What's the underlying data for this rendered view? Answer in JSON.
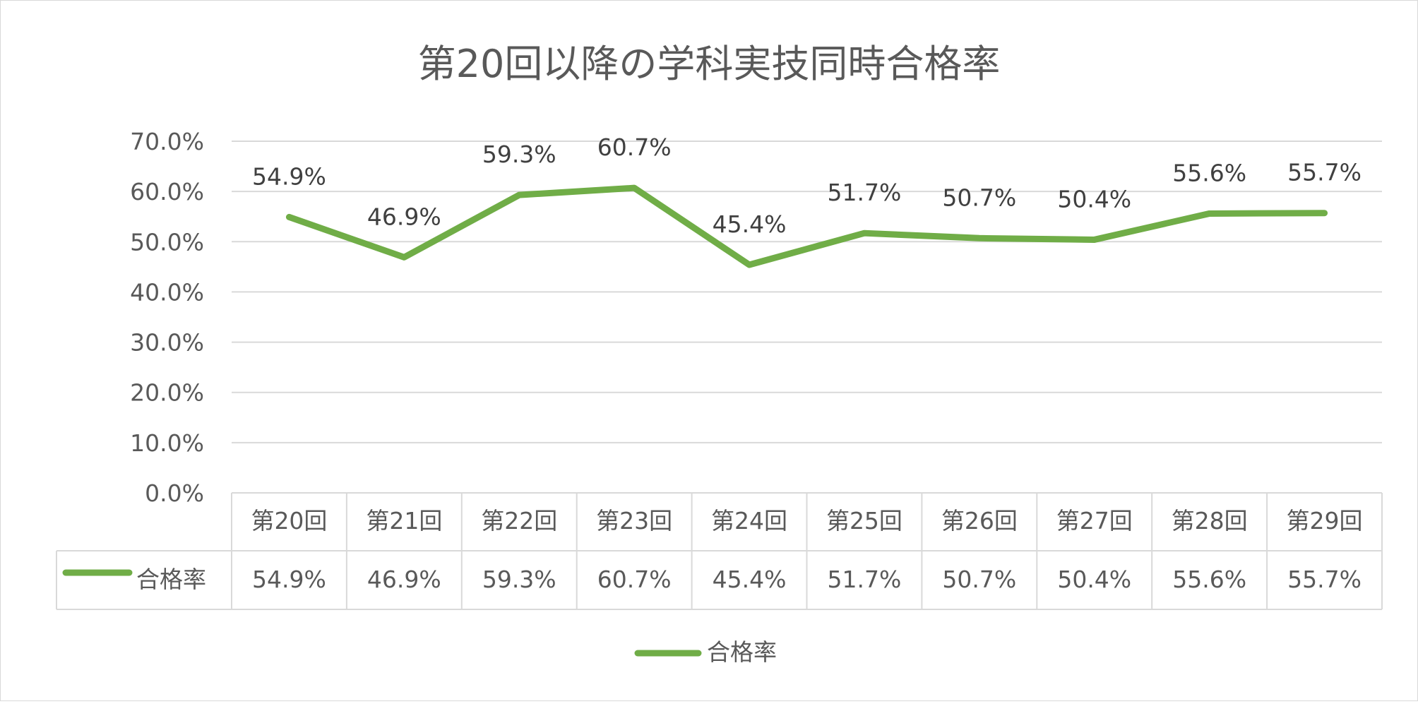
{
  "chart_data": {
    "type": "line",
    "title": "第20回以降の学科実技同時合格率",
    "categories": [
      "第20回",
      "第21回",
      "第22回",
      "第23回",
      "第24回",
      "第25回",
      "第26回",
      "第27回",
      "第28回",
      "第29回"
    ],
    "series": [
      {
        "name": "合格率",
        "values": [
          54.9,
          46.9,
          59.3,
          60.7,
          45.4,
          51.7,
          50.7,
          50.4,
          55.6,
          55.7
        ],
        "labels": [
          "54.9%",
          "46.9%",
          "59.3%",
          "60.7%",
          "45.4%",
          "51.7%",
          "50.7%",
          "50.4%",
          "55.6%",
          "55.7%"
        ],
        "color": "#70ad47"
      }
    ],
    "ylim": [
      0,
      70
    ],
    "y_ticks": [
      "0.0%",
      "10.0%",
      "20.0%",
      "30.0%",
      "40.0%",
      "50.0%",
      "60.0%",
      "70.0%"
    ],
    "grid": true,
    "data_table": true,
    "legend": "bottom"
  },
  "colors": {
    "series": "#70ad47",
    "grid": "#d9d9d9",
    "text": "#595959"
  }
}
